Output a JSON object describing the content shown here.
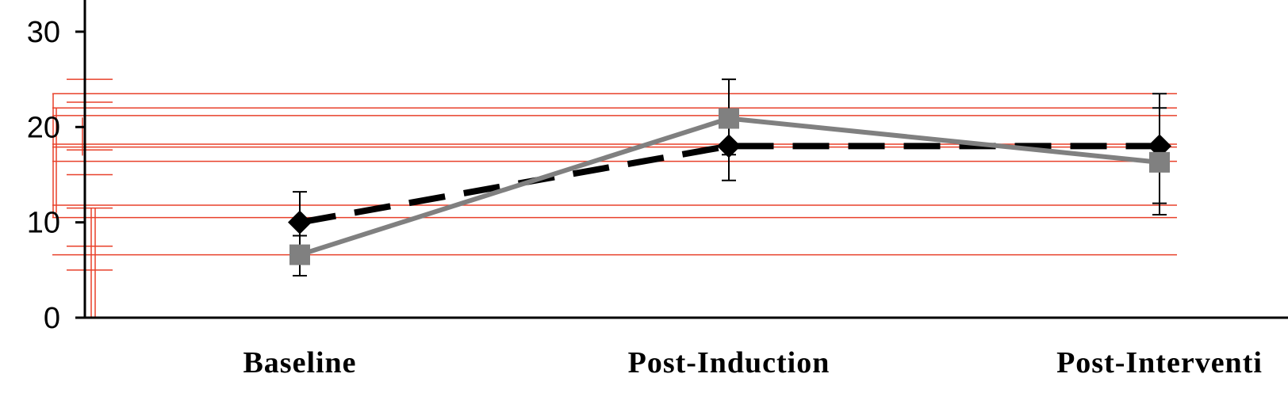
{
  "chart_data": {
    "type": "line",
    "title": "",
    "xlabel": "",
    "ylabel": "",
    "categories": [
      "Baseline",
      "Post-Induction",
      "Post-Interventi"
    ],
    "ylim": [
      0,
      33
    ],
    "yticks": [
      0,
      10,
      20,
      30
    ],
    "grid": false,
    "legend": "none",
    "series": [
      {
        "style": "dashed",
        "color": "#000000",
        "marker": "diamond",
        "values": [
          10,
          18,
          18
        ],
        "err_low": [
          8.6,
          14.4,
          10.8
        ],
        "err_high": [
          13.2,
          25.0,
          23.5
        ]
      },
      {
        "style": "solid",
        "color": "#808080",
        "marker": "square",
        "values": [
          6.6,
          20.9,
          16.3
        ],
        "err_low": [
          4.4,
          17.1,
          12.0
        ],
        "err_high": [
          8.6,
          21.8,
          22.0
        ]
      }
    ],
    "overlay": {
      "color": "#e8402a",
      "guide_values": [
        23.5,
        22.0,
        21.2,
        18.2,
        17.9,
        16.4,
        11.8,
        10.5,
        6.6
      ],
      "left_marks": [
        25.0,
        22.6,
        22.0,
        17.6,
        15.0,
        11.5,
        7.5,
        5.0
      ]
    }
  }
}
